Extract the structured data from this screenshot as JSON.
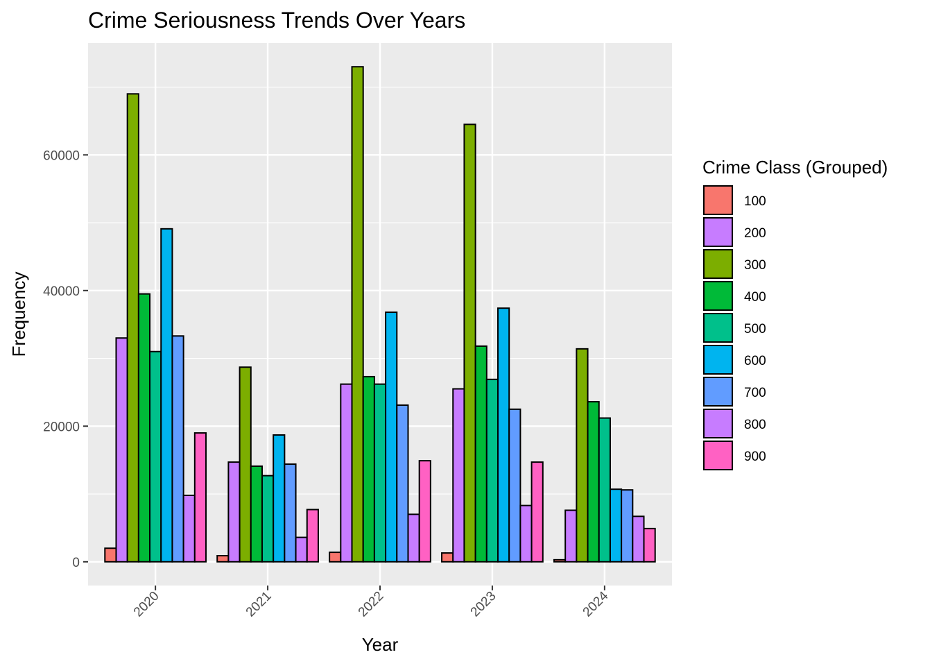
{
  "chart_data": {
    "type": "bar",
    "title": "Crime Seriousness Trends Over Years",
    "xlabel": "Year",
    "ylabel": "Frequency",
    "categories": [
      "2020",
      "2021",
      "2022",
      "2023",
      "2024"
    ],
    "ylim": [
      -3500,
      76500
    ],
    "yticks": [
      0,
      20000,
      40000,
      60000
    ],
    "grid": true,
    "legend": {
      "title": "Crime Class (Grouped)",
      "position": "right"
    },
    "series": [
      {
        "name": "100",
        "color": "#F8766D",
        "values": [
          2000,
          900,
          1400,
          1300,
          300
        ]
      },
      {
        "name": "200",
        "color": "#C77CFF",
        "values": [
          33000,
          14700,
          26200,
          25500,
          7600
        ]
      },
      {
        "name": "300",
        "color": "#7CAE00",
        "values": [
          69000,
          28700,
          73000,
          64500,
          31400
        ]
      },
      {
        "name": "400",
        "color": "#00BA38",
        "values": [
          39500,
          14100,
          27300,
          31800,
          23600
        ]
      },
      {
        "name": "500",
        "color": "#00C08B",
        "values": [
          31000,
          12700,
          26200,
          26900,
          21200
        ]
      },
      {
        "name": "600",
        "color": "#00B4EF",
        "values": [
          49100,
          18700,
          36800,
          37400,
          10700
        ]
      },
      {
        "name": "700",
        "color": "#619CFF",
        "values": [
          33300,
          14400,
          23100,
          22500,
          10600
        ]
      },
      {
        "name": "800",
        "color": "#C77CFF",
        "values": [
          9800,
          3600,
          7000,
          8300,
          6700
        ]
      },
      {
        "name": "900",
        "color": "#FF61C3",
        "values": [
          19000,
          7700,
          14900,
          14700,
          4900
        ]
      }
    ]
  }
}
